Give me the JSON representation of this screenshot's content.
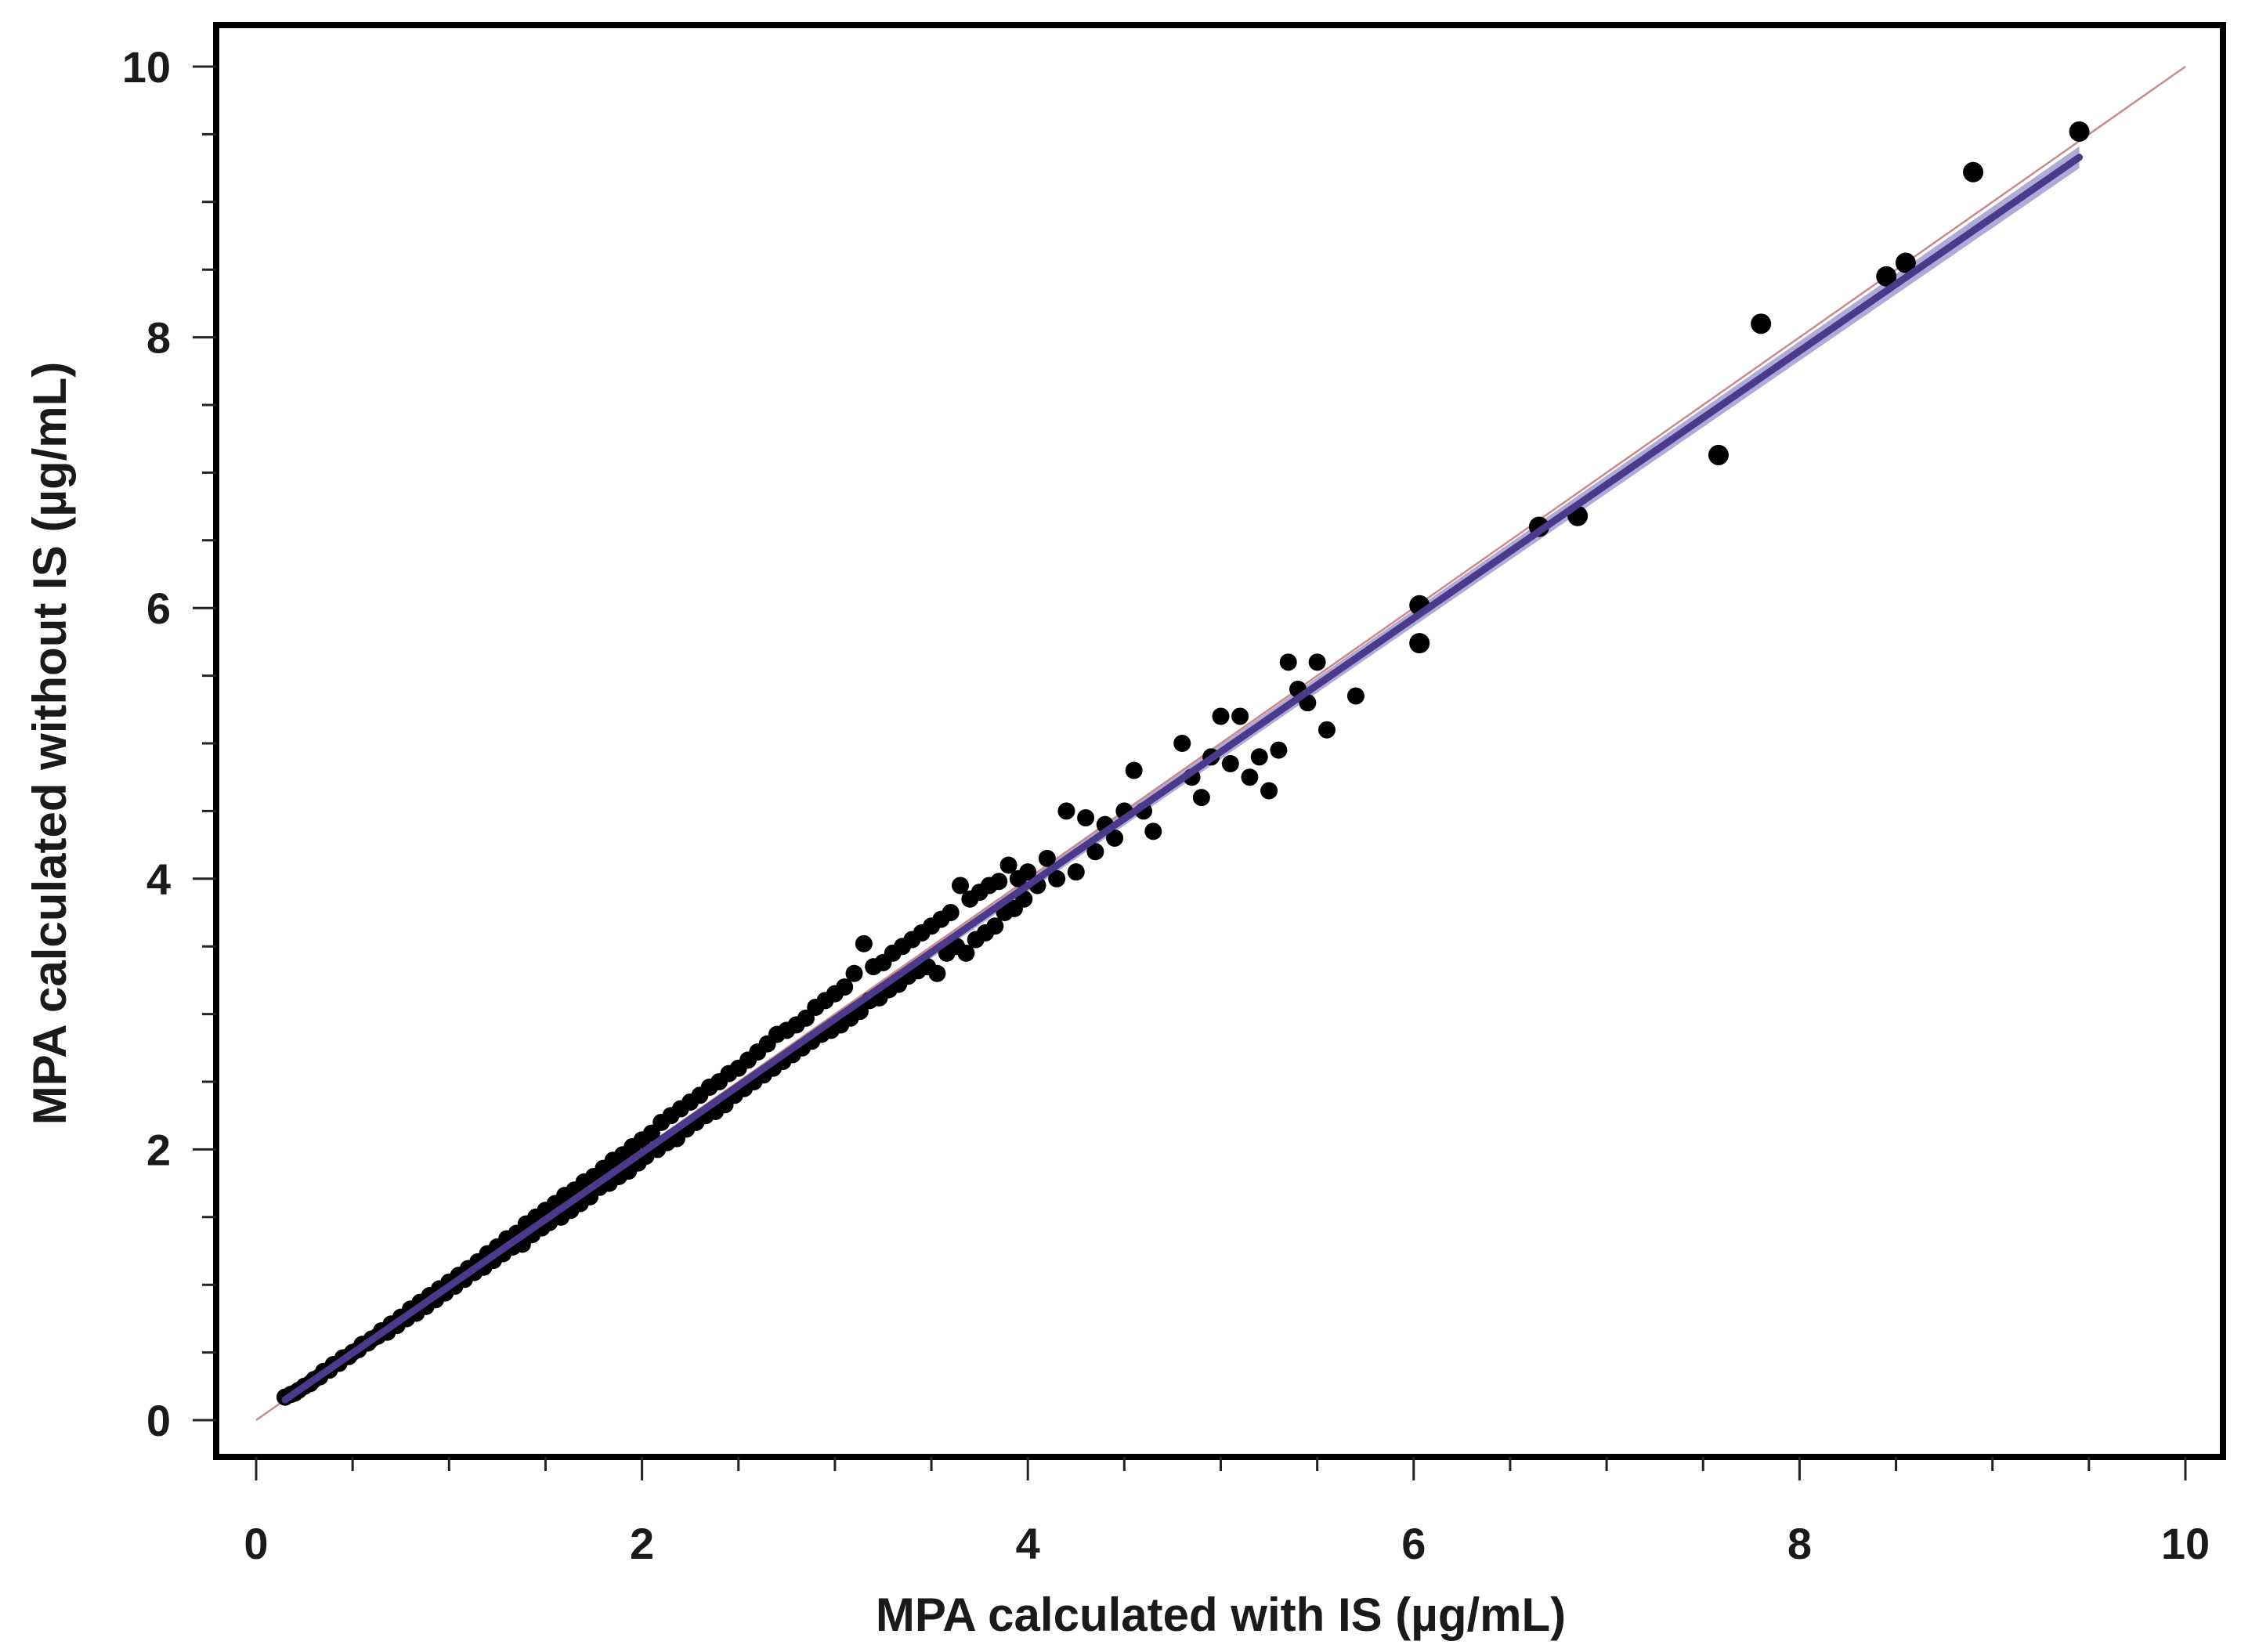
{
  "chart_data": {
    "type": "scatter",
    "title": "",
    "xlabel": "MPA calculated  with IS (µg/mL)",
    "ylabel": "MPA calculated  without IS (µg/mL)",
    "xlim": [
      0,
      10
    ],
    "ylim": [
      0,
      10
    ],
    "x_ticks": [
      0,
      2,
      4,
      6,
      8,
      10
    ],
    "y_ticks": [
      0,
      2,
      4,
      6,
      8,
      10
    ],
    "x_tick_labels": [
      "0",
      "2",
      "4",
      "6",
      "8",
      "10"
    ],
    "y_tick_labels": [
      "0",
      "2",
      "4",
      "6",
      "8",
      "10"
    ],
    "grid": false,
    "legend": "none",
    "colors": {
      "points": "#000000",
      "fit_line": "#4b3a8c",
      "fit_band": "#8f86c9",
      "identity_line": "#c98a8a",
      "frame": "#000000"
    },
    "series": [
      {
        "type": "scatter",
        "points": [
          [
            0.15,
            0.17
          ],
          [
            0.18,
            0.19
          ],
          [
            0.2,
            0.2
          ],
          [
            0.22,
            0.22
          ],
          [
            0.25,
            0.25
          ],
          [
            0.28,
            0.27
          ],
          [
            0.3,
            0.3
          ],
          [
            0.33,
            0.32
          ],
          [
            0.35,
            0.36
          ],
          [
            0.38,
            0.37
          ],
          [
            0.4,
            0.41
          ],
          [
            0.43,
            0.42
          ],
          [
            0.45,
            0.46
          ],
          [
            0.48,
            0.47
          ],
          [
            0.5,
            0.5
          ],
          [
            0.53,
            0.52
          ],
          [
            0.55,
            0.56
          ],
          [
            0.58,
            0.57
          ],
          [
            0.6,
            0.6
          ],
          [
            0.63,
            0.62
          ],
          [
            0.65,
            0.66
          ],
          [
            0.68,
            0.65
          ],
          [
            0.7,
            0.71
          ],
          [
            0.73,
            0.7
          ],
          [
            0.75,
            0.76
          ],
          [
            0.78,
            0.75
          ],
          [
            0.8,
            0.82
          ],
          [
            0.83,
            0.79
          ],
          [
            0.85,
            0.87
          ],
          [
            0.88,
            0.84
          ],
          [
            0.9,
            0.92
          ],
          [
            0.93,
            0.89
          ],
          [
            0.95,
            0.97
          ],
          [
            0.98,
            0.94
          ],
          [
            1.0,
            1.02
          ],
          [
            1.03,
            0.99
          ],
          [
            1.05,
            1.07
          ],
          [
            1.08,
            1.04
          ],
          [
            1.1,
            1.12
          ],
          [
            1.13,
            1.09
          ],
          [
            1.15,
            1.17
          ],
          [
            1.18,
            1.13
          ],
          [
            1.2,
            1.23
          ],
          [
            1.23,
            1.18
          ],
          [
            1.25,
            1.28
          ],
          [
            1.28,
            1.23
          ],
          [
            1.3,
            1.34
          ],
          [
            1.33,
            1.28
          ],
          [
            1.35,
            1.38
          ],
          [
            1.38,
            1.3
          ],
          [
            1.4,
            1.45
          ],
          [
            1.43,
            1.37
          ],
          [
            1.45,
            1.5
          ],
          [
            1.48,
            1.42
          ],
          [
            1.5,
            1.55
          ],
          [
            1.52,
            1.46
          ],
          [
            1.55,
            1.6
          ],
          [
            1.58,
            1.5
          ],
          [
            1.6,
            1.66
          ],
          [
            1.63,
            1.55
          ],
          [
            1.65,
            1.7
          ],
          [
            1.68,
            1.6
          ],
          [
            1.7,
            1.76
          ],
          [
            1.73,
            1.65
          ],
          [
            1.75,
            1.8
          ],
          [
            1.78,
            1.72
          ],
          [
            1.8,
            1.86
          ],
          [
            1.83,
            1.75
          ],
          [
            1.85,
            1.92
          ],
          [
            1.88,
            1.8
          ],
          [
            1.9,
            1.96
          ],
          [
            1.93,
            1.84
          ],
          [
            1.95,
            2.02
          ],
          [
            1.98,
            1.9
          ],
          [
            2.0,
            2.07
          ],
          [
            2.02,
            1.95
          ],
          [
            2.05,
            2.12
          ],
          [
            2.08,
            2.0
          ],
          [
            2.1,
            2.2
          ],
          [
            2.13,
            2.05
          ],
          [
            2.15,
            2.25
          ],
          [
            2.18,
            2.08
          ],
          [
            2.2,
            2.3
          ],
          [
            2.23,
            2.15
          ],
          [
            2.25,
            2.35
          ],
          [
            2.28,
            2.2
          ],
          [
            2.3,
            2.4
          ],
          [
            2.33,
            2.25
          ],
          [
            2.35,
            2.46
          ],
          [
            2.38,
            2.28
          ],
          [
            2.4,
            2.5
          ],
          [
            2.43,
            2.33
          ],
          [
            2.45,
            2.56
          ],
          [
            2.48,
            2.4
          ],
          [
            2.5,
            2.6
          ],
          [
            2.53,
            2.45
          ],
          [
            2.55,
            2.66
          ],
          [
            2.58,
            2.5
          ],
          [
            2.6,
            2.72
          ],
          [
            2.63,
            2.55
          ],
          [
            2.65,
            2.78
          ],
          [
            2.68,
            2.6
          ],
          [
            2.7,
            2.85
          ],
          [
            2.73,
            2.65
          ],
          [
            2.75,
            2.88
          ],
          [
            2.78,
            2.7
          ],
          [
            2.8,
            2.92
          ],
          [
            2.83,
            2.75
          ],
          [
            2.85,
            2.97
          ],
          [
            2.88,
            2.8
          ],
          [
            2.9,
            3.05
          ],
          [
            2.93,
            2.85
          ],
          [
            2.95,
            3.1
          ],
          [
            2.98,
            2.88
          ],
          [
            3.0,
            3.15
          ],
          [
            3.03,
            2.92
          ],
          [
            3.05,
            3.2
          ],
          [
            3.08,
            2.97
          ],
          [
            3.1,
            3.3
          ],
          [
            3.13,
            3.02
          ],
          [
            3.15,
            3.52
          ],
          [
            3.18,
            3.1
          ],
          [
            3.2,
            3.35
          ],
          [
            3.23,
            3.12
          ],
          [
            3.25,
            3.38
          ],
          [
            3.28,
            3.18
          ],
          [
            3.3,
            3.45
          ],
          [
            3.33,
            3.22
          ],
          [
            3.35,
            3.5
          ],
          [
            3.38,
            3.28
          ],
          [
            3.4,
            3.55
          ],
          [
            3.43,
            3.32
          ],
          [
            3.45,
            3.6
          ],
          [
            3.48,
            3.35
          ],
          [
            3.5,
            3.65
          ],
          [
            3.53,
            3.3
          ],
          [
            3.55,
            3.7
          ],
          [
            3.58,
            3.45
          ],
          [
            3.6,
            3.75
          ],
          [
            3.63,
            3.5
          ],
          [
            3.65,
            3.95
          ],
          [
            3.68,
            3.45
          ],
          [
            3.7,
            3.85
          ],
          [
            3.73,
            3.55
          ],
          [
            3.75,
            3.9
          ],
          [
            3.78,
            3.6
          ],
          [
            3.8,
            3.95
          ],
          [
            3.83,
            3.65
          ],
          [
            3.85,
            3.98
          ],
          [
            3.88,
            3.75
          ],
          [
            3.9,
            4.1
          ],
          [
            3.93,
            3.78
          ],
          [
            3.95,
            4.0
          ],
          [
            3.98,
            3.85
          ],
          [
            4.0,
            4.05
          ],
          [
            4.05,
            3.95
          ],
          [
            4.1,
            4.15
          ],
          [
            4.15,
            4.0
          ],
          [
            4.2,
            4.5
          ],
          [
            4.25,
            4.05
          ],
          [
            4.3,
            4.45
          ],
          [
            4.35,
            4.2
          ],
          [
            4.4,
            4.4
          ],
          [
            4.45,
            4.3
          ],
          [
            4.5,
            4.5
          ],
          [
            4.55,
            4.8
          ],
          [
            4.6,
            4.5
          ],
          [
            4.65,
            4.35
          ],
          [
            4.8,
            5.0
          ],
          [
            4.85,
            4.75
          ],
          [
            4.9,
            4.6
          ],
          [
            4.95,
            4.9
          ],
          [
            5.0,
            5.2
          ],
          [
            5.05,
            4.85
          ],
          [
            5.1,
            5.2
          ],
          [
            5.15,
            4.75
          ],
          [
            5.2,
            4.9
          ],
          [
            5.25,
            4.65
          ],
          [
            5.3,
            4.95
          ],
          [
            5.35,
            5.6
          ],
          [
            5.4,
            5.4
          ],
          [
            5.45,
            5.3
          ],
          [
            5.5,
            5.6
          ],
          [
            5.55,
            5.1
          ],
          [
            5.7,
            5.35
          ],
          [
            6.03,
            5.74
          ],
          [
            6.03,
            6.02
          ],
          [
            6.65,
            6.6
          ],
          [
            6.85,
            6.68
          ],
          [
            7.58,
            7.13
          ],
          [
            7.8,
            8.1
          ],
          [
            8.45,
            8.45
          ],
          [
            8.55,
            8.55
          ],
          [
            8.9,
            9.22
          ],
          [
            9.45,
            9.52
          ]
        ]
      },
      {
        "type": "line",
        "role": "regression-fit",
        "x": [
          0.15,
          9.45
        ],
        "y": [
          0.15,
          9.33
        ]
      },
      {
        "type": "line",
        "role": "identity",
        "x": [
          0,
          10
        ],
        "y": [
          0,
          10
        ]
      }
    ]
  }
}
